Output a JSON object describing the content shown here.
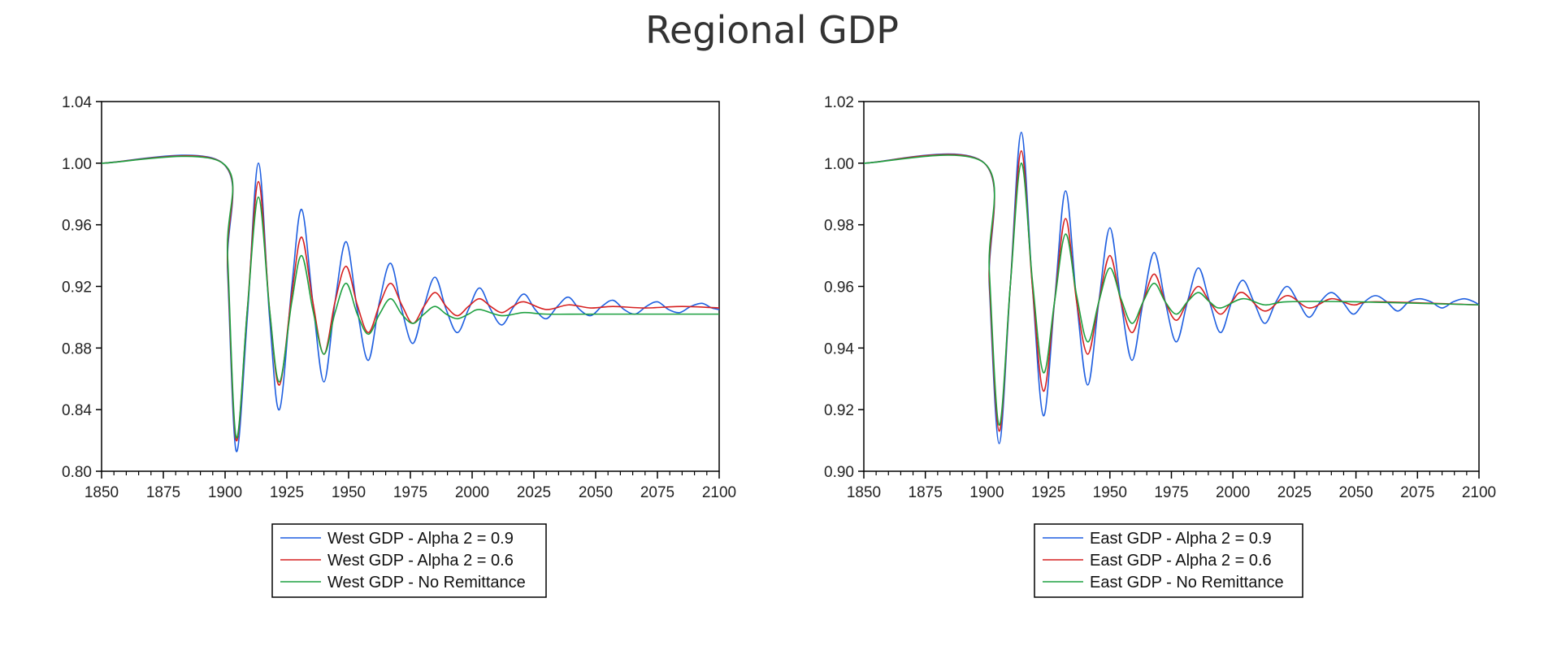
{
  "title": "Regional GDP",
  "colors": {
    "alpha09": "#1f5fe0",
    "alpha06": "#d62020",
    "no_remittance": "#1ea040",
    "axis": "#000000"
  },
  "chart_data": [
    {
      "type": "line",
      "xlim": [
        1850,
        2100
      ],
      "ylim": [
        0.8,
        1.04
      ],
      "x_ticks": [
        1850,
        1875,
        1900,
        1925,
        1950,
        1975,
        2000,
        2025,
        2050,
        2075,
        2100
      ],
      "x_tick_labels": [
        "1850",
        "1875",
        "1900",
        "1925",
        "1950",
        "1975",
        "2000",
        "2025",
        "2050",
        "2075",
        "2100"
      ],
      "y_ticks": [
        0.8,
        0.84,
        0.88,
        0.92,
        0.96,
        1.0,
        1.04
      ],
      "y_tick_labels": [
        "0.80",
        "0.84",
        "0.88",
        "0.92",
        "0.96",
        "1.00",
        "1.04"
      ],
      "legend_position": "bottom",
      "series": [
        {
          "name": "West GDP - Alpha 2 = 0.9",
          "color": "#1f5fe0",
          "points": [
            [
              1850,
              1.0
            ],
            [
              1899,
              1.0
            ],
            [
              1901,
              0.93
            ],
            [
              1904.5,
              0.813
            ],
            [
              1909,
              0.9
            ],
            [
              1913.5,
              1.0
            ],
            [
              1918,
              0.9
            ],
            [
              1922,
              0.84
            ],
            [
              1927,
              0.92
            ],
            [
              1931,
              0.97
            ],
            [
              1935.5,
              0.91
            ],
            [
              1940,
              0.858
            ],
            [
              1944.5,
              0.91
            ],
            [
              1949,
              0.949
            ],
            [
              1953.5,
              0.905
            ],
            [
              1958,
              0.872
            ],
            [
              1962.5,
              0.91
            ],
            [
              1967,
              0.935
            ],
            [
              1971.5,
              0.905
            ],
            [
              1976,
              0.883
            ],
            [
              1980.5,
              0.907
            ],
            [
              1985,
              0.926
            ],
            [
              1989.5,
              0.905
            ],
            [
              1994,
              0.89
            ],
            [
              1998.5,
              0.905
            ],
            [
              2003,
              0.919
            ],
            [
              2007.5,
              0.905
            ],
            [
              2012,
              0.895
            ],
            [
              2016.5,
              0.906
            ],
            [
              2021,
              0.915
            ],
            [
              2025.5,
              0.905
            ],
            [
              2030,
              0.899
            ],
            [
              2034.5,
              0.907
            ],
            [
              2039,
              0.913
            ],
            [
              2043.5,
              0.905
            ],
            [
              2048,
              0.901
            ],
            [
              2052.5,
              0.907
            ],
            [
              2057,
              0.911
            ],
            [
              2061.5,
              0.905
            ],
            [
              2066,
              0.902
            ],
            [
              2070.5,
              0.907
            ],
            [
              2075,
              0.91
            ],
            [
              2079.5,
              0.905
            ],
            [
              2084,
              0.903
            ],
            [
              2088.5,
              0.907
            ],
            [
              2093,
              0.909
            ],
            [
              2097,
              0.906
            ],
            [
              2100,
              0.905
            ]
          ]
        },
        {
          "name": "West GDP - Alpha 2 = 0.6",
          "color": "#d62020",
          "points": [
            [
              1850,
              1.0
            ],
            [
              1899,
              1.0
            ],
            [
              1901,
              0.935
            ],
            [
              1904.5,
              0.82
            ],
            [
              1909,
              0.905
            ],
            [
              1913.5,
              0.988
            ],
            [
              1918,
              0.905
            ],
            [
              1922,
              0.856
            ],
            [
              1927,
              0.915
            ],
            [
              1931,
              0.952
            ],
            [
              1935.5,
              0.91
            ],
            [
              1940,
              0.876
            ],
            [
              1944.5,
              0.91
            ],
            [
              1949,
              0.933
            ],
            [
              1953.5,
              0.908
            ],
            [
              1958,
              0.89
            ],
            [
              1962.5,
              0.908
            ],
            [
              1967,
              0.922
            ],
            [
              1971.5,
              0.908
            ],
            [
              1976,
              0.896
            ],
            [
              1980.5,
              0.907
            ],
            [
              1985,
              0.916
            ],
            [
              1989.5,
              0.907
            ],
            [
              1994,
              0.901
            ],
            [
              1998.5,
              0.907
            ],
            [
              2003,
              0.912
            ],
            [
              2007.5,
              0.907
            ],
            [
              2012,
              0.903
            ],
            [
              2016.5,
              0.907
            ],
            [
              2021,
              0.91
            ],
            [
              2030,
              0.905
            ],
            [
              2039,
              0.908
            ],
            [
              2048,
              0.906
            ],
            [
              2057,
              0.907
            ],
            [
              2070,
              0.906
            ],
            [
              2085,
              0.907
            ],
            [
              2100,
              0.906
            ]
          ]
        },
        {
          "name": "West GDP - No Remittance",
          "color": "#1ea040",
          "points": [
            [
              1850,
              1.0
            ],
            [
              1899,
              1.0
            ],
            [
              1901,
              0.94
            ],
            [
              1904.5,
              0.822
            ],
            [
              1909,
              0.905
            ],
            [
              1913.5,
              0.978
            ],
            [
              1918,
              0.905
            ],
            [
              1922,
              0.858
            ],
            [
              1927,
              0.91
            ],
            [
              1931,
              0.94
            ],
            [
              1935.5,
              0.905
            ],
            [
              1940,
              0.876
            ],
            [
              1944.5,
              0.903
            ],
            [
              1949,
              0.922
            ],
            [
              1953.5,
              0.902
            ],
            [
              1958,
              0.889
            ],
            [
              1962.5,
              0.902
            ],
            [
              1967,
              0.912
            ],
            [
              1971.5,
              0.902
            ],
            [
              1976,
              0.896
            ],
            [
              1980.5,
              0.902
            ],
            [
              1985,
              0.907
            ],
            [
              1989.5,
              0.902
            ],
            [
              1994,
              0.899
            ],
            [
              1998.5,
              0.902
            ],
            [
              2003,
              0.905
            ],
            [
              2012,
              0.901
            ],
            [
              2021,
              0.903
            ],
            [
              2030,
              0.902
            ],
            [
              2050,
              0.902
            ],
            [
              2100,
              0.902
            ]
          ]
        }
      ]
    },
    {
      "type": "line",
      "xlim": [
        1850,
        2100
      ],
      "ylim": [
        0.9,
        1.02
      ],
      "x_ticks": [
        1850,
        1875,
        1900,
        1925,
        1950,
        1975,
        2000,
        2025,
        2050,
        2075,
        2100
      ],
      "x_tick_labels": [
        "1850",
        "1875",
        "1900",
        "1925",
        "1950",
        "1975",
        "2000",
        "2025",
        "2050",
        "2075",
        "2100"
      ],
      "y_ticks": [
        0.9,
        0.92,
        0.94,
        0.96,
        0.98,
        1.0,
        1.02
      ],
      "y_tick_labels": [
        "0.90",
        "0.92",
        "0.94",
        "0.96",
        "0.98",
        "1.00",
        "1.02"
      ],
      "legend_position": "bottom",
      "series": [
        {
          "name": "East GDP - Alpha 2 = 0.9",
          "color": "#1f5fe0",
          "points": [
            [
              1850,
              1.0
            ],
            [
              1899,
              1.0
            ],
            [
              1901,
              0.96
            ],
            [
              1905,
              0.909
            ],
            [
              1909.5,
              0.96
            ],
            [
              1914,
              1.01
            ],
            [
              1918.5,
              0.96
            ],
            [
              1923,
              0.918
            ],
            [
              1927.5,
              0.955
            ],
            [
              1932,
              0.991
            ],
            [
              1936.5,
              0.955
            ],
            [
              1941,
              0.928
            ],
            [
              1945.5,
              0.955
            ],
            [
              1950,
              0.979
            ],
            [
              1954.5,
              0.955
            ],
            [
              1959,
              0.936
            ],
            [
              1963.5,
              0.955
            ],
            [
              1968,
              0.971
            ],
            [
              1972.5,
              0.955
            ],
            [
              1977,
              0.942
            ],
            [
              1981.5,
              0.955
            ],
            [
              1986,
              0.966
            ],
            [
              1990.5,
              0.955
            ],
            [
              1995,
              0.945
            ],
            [
              1999.5,
              0.955
            ],
            [
              2004,
              0.962
            ],
            [
              2008.5,
              0.955
            ],
            [
              2013,
              0.948
            ],
            [
              2017.5,
              0.955
            ],
            [
              2022,
              0.96
            ],
            [
              2026.5,
              0.955
            ],
            [
              2031,
              0.95
            ],
            [
              2035.5,
              0.955
            ],
            [
              2040,
              0.958
            ],
            [
              2044.5,
              0.955
            ],
            [
              2049,
              0.951
            ],
            [
              2053.5,
              0.955
            ],
            [
              2058,
              0.957
            ],
            [
              2062.5,
              0.955
            ],
            [
              2067,
              0.952
            ],
            [
              2071.5,
              0.955
            ],
            [
              2076,
              0.956
            ],
            [
              2080.5,
              0.955
            ],
            [
              2085,
              0.953
            ],
            [
              2089.5,
              0.955
            ],
            [
              2094,
              0.956
            ],
            [
              2098,
              0.955
            ],
            [
              2100,
              0.954
            ]
          ]
        },
        {
          "name": "East GDP - Alpha 2 = 0.6",
          "color": "#d62020",
          "points": [
            [
              1850,
              1.0
            ],
            [
              1899,
              1.0
            ],
            [
              1901,
              0.962
            ],
            [
              1905,
              0.913
            ],
            [
              1909.5,
              0.96
            ],
            [
              1914,
              1.004
            ],
            [
              1918.5,
              0.96
            ],
            [
              1923,
              0.926
            ],
            [
              1927.5,
              0.955
            ],
            [
              1932,
              0.982
            ],
            [
              1936.5,
              0.955
            ],
            [
              1941,
              0.938
            ],
            [
              1945.5,
              0.955
            ],
            [
              1950,
              0.97
            ],
            [
              1954.5,
              0.955
            ],
            [
              1959,
              0.945
            ],
            [
              1963.5,
              0.955
            ],
            [
              1968,
              0.964
            ],
            [
              1972.5,
              0.955
            ],
            [
              1977,
              0.949
            ],
            [
              1981.5,
              0.955
            ],
            [
              1986,
              0.96
            ],
            [
              1990.5,
              0.955
            ],
            [
              1995,
              0.951
            ],
            [
              1999.5,
              0.955
            ],
            [
              2004,
              0.958
            ],
            [
              2013,
              0.952
            ],
            [
              2022,
              0.957
            ],
            [
              2031,
              0.953
            ],
            [
              2040,
              0.956
            ],
            [
              2049,
              0.954
            ],
            [
              2058,
              0.955
            ],
            [
              2100,
              0.954
            ]
          ]
        },
        {
          "name": "East GDP - No Remittance",
          "color": "#1ea040",
          "points": [
            [
              1850,
              1.0
            ],
            [
              1899,
              1.0
            ],
            [
              1901,
              0.965
            ],
            [
              1905,
              0.915
            ],
            [
              1909.5,
              0.96
            ],
            [
              1914,
              1.0
            ],
            [
              1918.5,
              0.962
            ],
            [
              1923,
              0.932
            ],
            [
              1927.5,
              0.955
            ],
            [
              1932,
              0.977
            ],
            [
              1936.5,
              0.957
            ],
            [
              1941,
              0.942
            ],
            [
              1945.5,
              0.955
            ],
            [
              1950,
              0.966
            ],
            [
              1954.5,
              0.956
            ],
            [
              1959,
              0.948
            ],
            [
              1963.5,
              0.955
            ],
            [
              1968,
              0.961
            ],
            [
              1972.5,
              0.955
            ],
            [
              1977,
              0.951
            ],
            [
              1981.5,
              0.955
            ],
            [
              1986,
              0.958
            ],
            [
              1990.5,
              0.955
            ],
            [
              1995,
              0.953
            ],
            [
              2004,
              0.956
            ],
            [
              2013,
              0.954
            ],
            [
              2022,
              0.955
            ],
            [
              2050,
              0.955
            ],
            [
              2100,
              0.954
            ]
          ]
        }
      ]
    }
  ]
}
